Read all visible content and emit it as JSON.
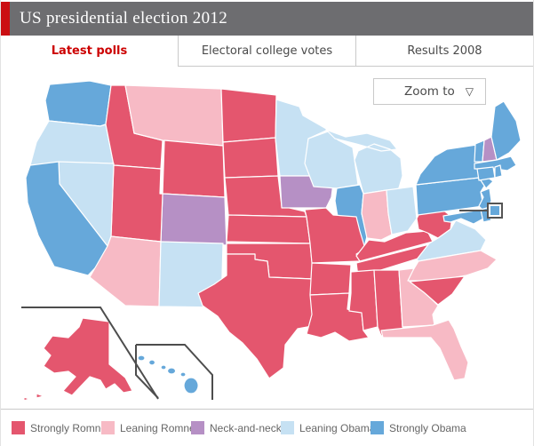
{
  "header": {
    "title": "US presidential election 2012",
    "accent_color": "#cb0e12",
    "bar_color": "#6d6d70"
  },
  "tabs": [
    {
      "label": "Latest polls",
      "active": true
    },
    {
      "label": "Electoral college votes",
      "active": false
    },
    {
      "label": "Results 2008",
      "active": false
    }
  ],
  "map": {
    "zoom_button_label": "Zoom to",
    "zoom_dropdown_icon": "▽",
    "category_colors": {
      "strong_romney": "#e4566e",
      "lean_romney": "#f7bac5",
      "neck_and_neck": "#b690c5",
      "lean_obama": "#c6e1f3",
      "strong_obama": "#66a8da"
    },
    "state_ratings": {
      "WA": "strong_obama",
      "OR": "lean_obama",
      "CA": "strong_obama",
      "NV": "lean_obama",
      "ID": "strong_romney",
      "MT": "lean_romney",
      "WY": "strong_romney",
      "UT": "strong_romney",
      "CO": "neck_and_neck",
      "AZ": "lean_romney",
      "NM": "lean_obama",
      "ND": "strong_romney",
      "SD": "strong_romney",
      "NE": "strong_romney",
      "KS": "strong_romney",
      "OK": "strong_romney",
      "TX": "strong_romney",
      "MN": "lean_obama",
      "IA": "neck_and_neck",
      "MO": "strong_romney",
      "AR": "strong_romney",
      "LA": "strong_romney",
      "WI": "lean_obama",
      "IL": "strong_obama",
      "IN": "lean_romney",
      "MI": "lean_obama",
      "OH": "lean_obama",
      "KY": "strong_romney",
      "TN": "strong_romney",
      "MS": "strong_romney",
      "AL": "strong_romney",
      "GA": "lean_romney",
      "FL": "lean_romney",
      "SC": "strong_romney",
      "NC": "lean_romney",
      "VA": "lean_obama",
      "WV": "strong_romney",
      "PA": "strong_obama",
      "NY": "strong_obama",
      "NJ": "strong_obama",
      "MD": "strong_obama",
      "DE": "strong_obama",
      "DC": "strong_obama",
      "VT": "strong_obama",
      "NH": "neck_and_neck",
      "ME": "strong_obama",
      "MA": "strong_obama",
      "CT": "strong_obama",
      "RI": "strong_obama",
      "AK": "strong_romney",
      "HI": "strong_obama"
    }
  },
  "legend": {
    "items": [
      {
        "label": "Strongly Romney",
        "category": "strong_romney"
      },
      {
        "label": "Leaning Romney",
        "category": "lean_romney"
      },
      {
        "label": "Neck-and-neck",
        "category": "neck_and_neck"
      },
      {
        "label": "Leaning Obama",
        "category": "lean_obama"
      },
      {
        "label": "Strongly Obama",
        "category": "strong_obama"
      }
    ]
  }
}
